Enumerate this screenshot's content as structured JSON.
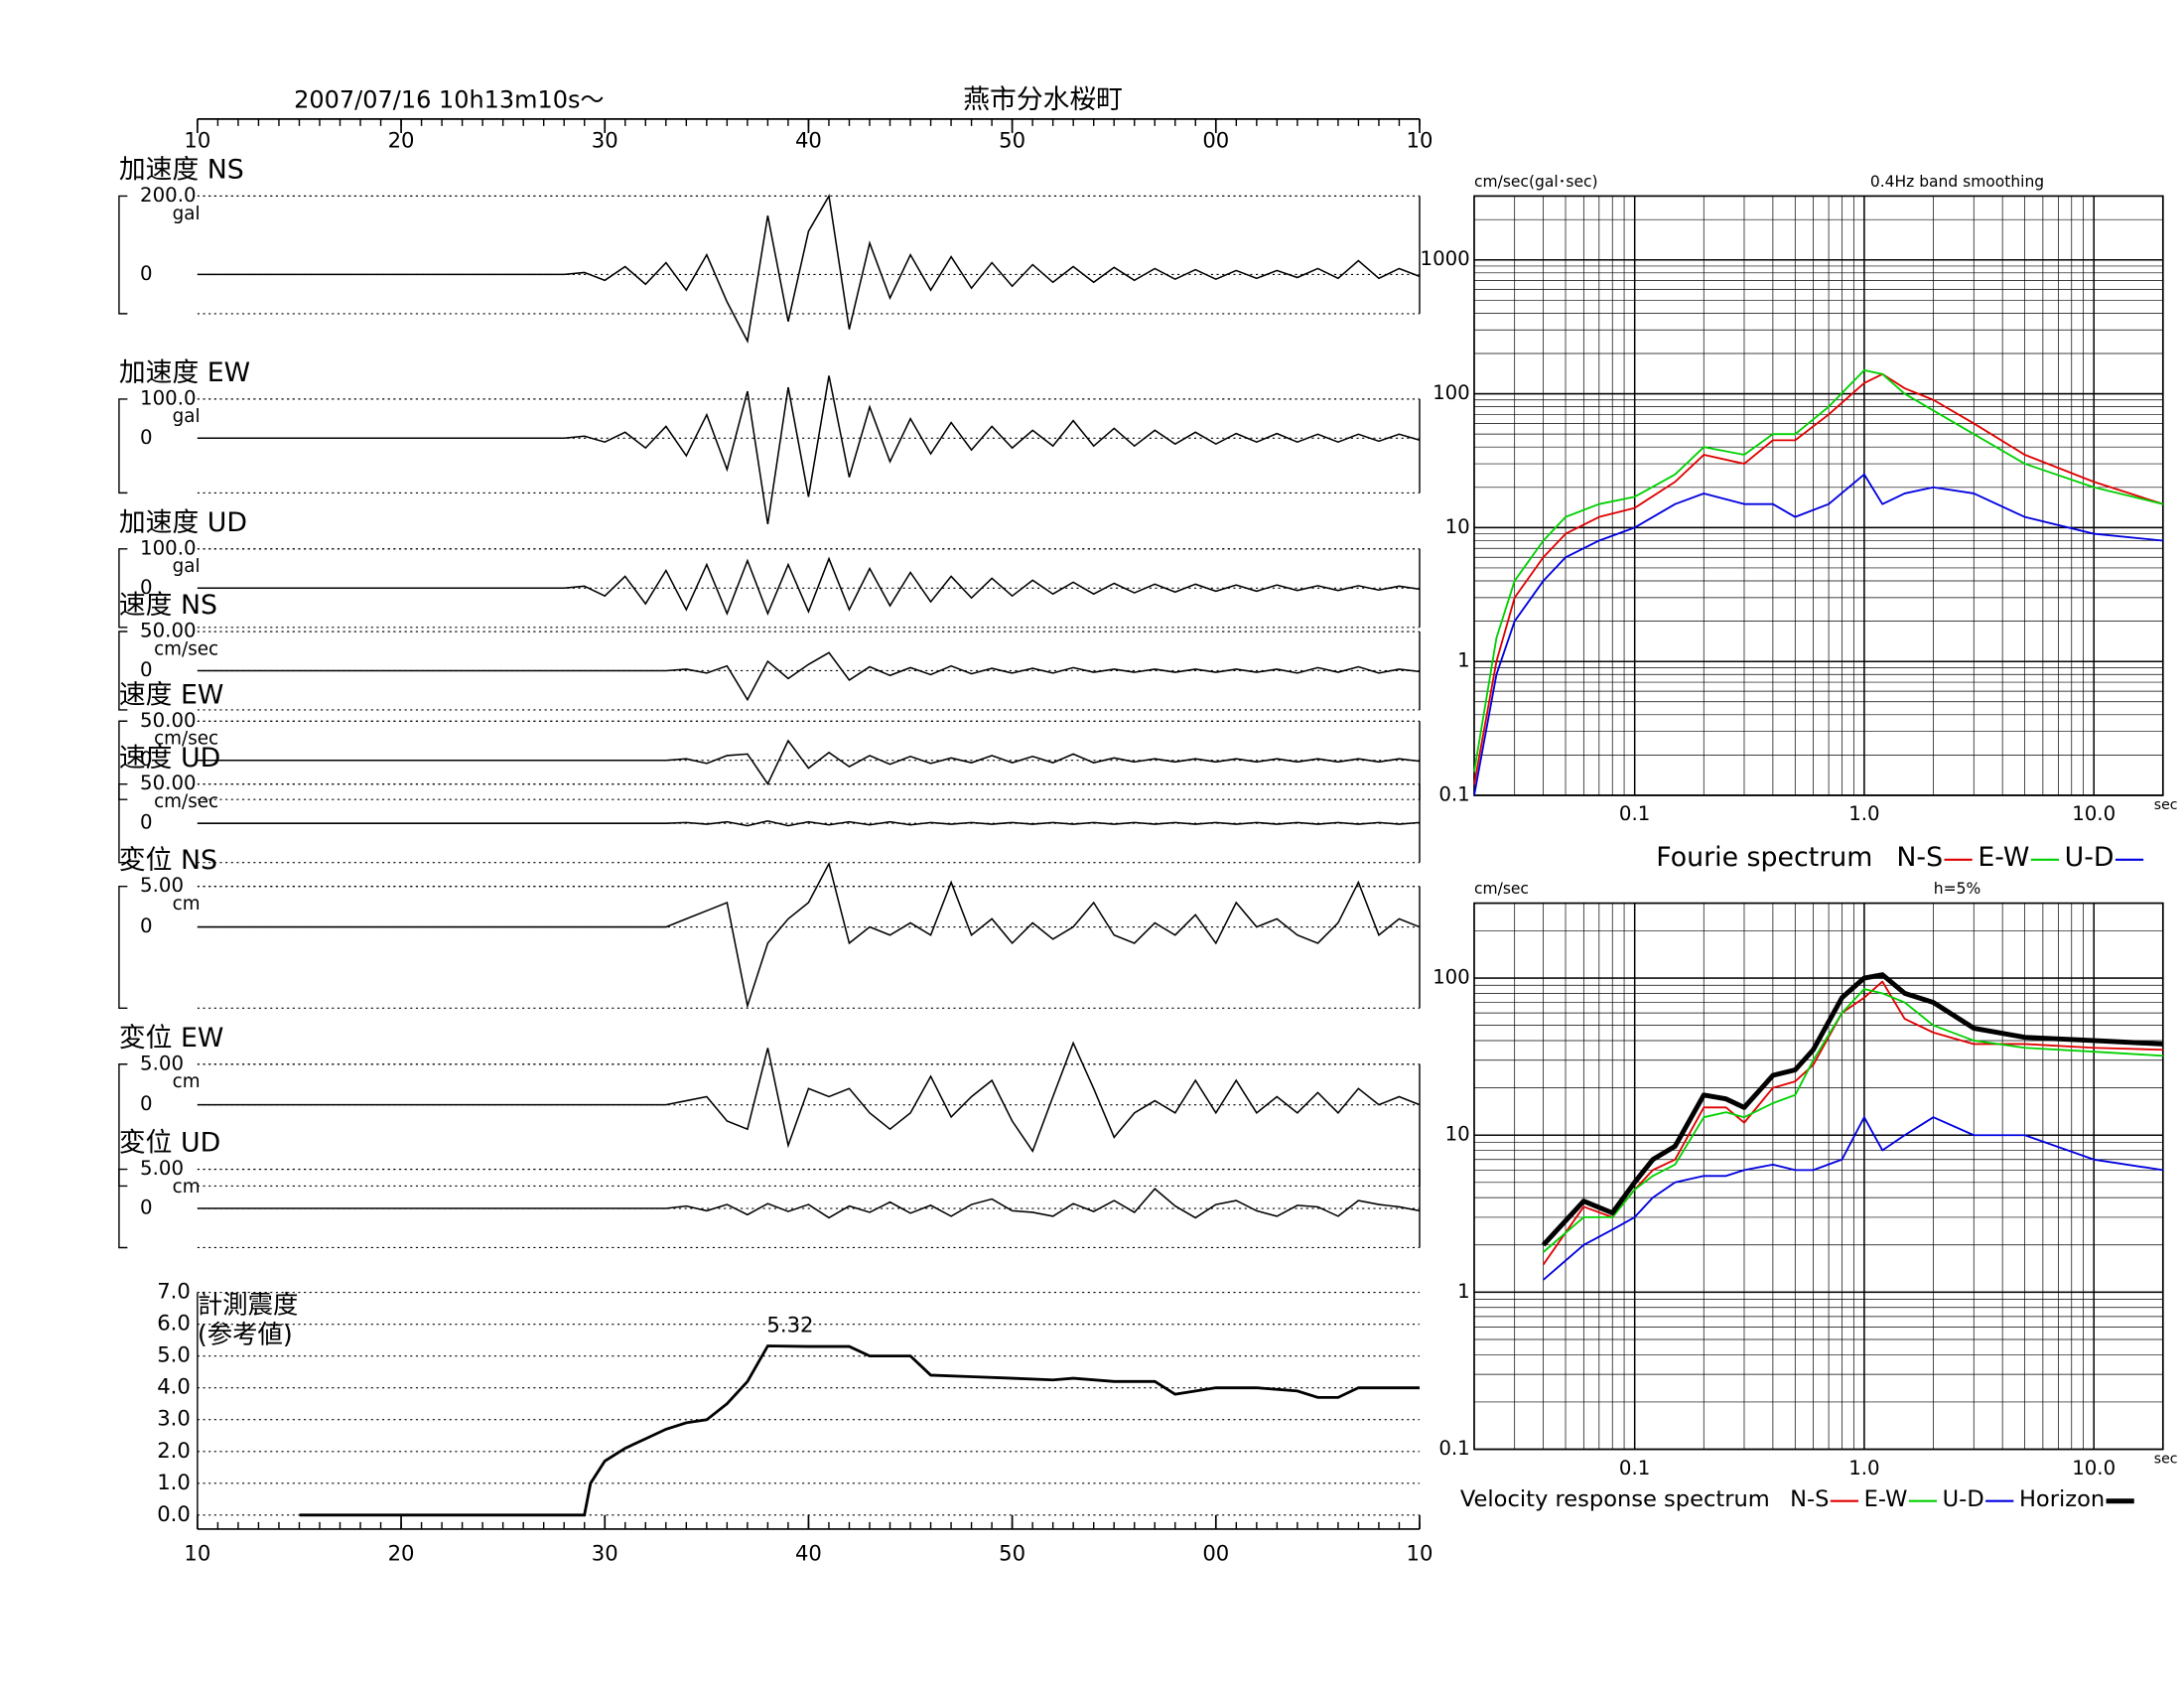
{
  "title": "燕市分水桜町",
  "datetime": "2007/07/16  10h13m10s〜",
  "chart_data": [
    {
      "type": "waveform",
      "xlim": [
        10,
        70
      ],
      "xticks": [
        10,
        20,
        30,
        40,
        50,
        {
          "value": 60,
          "label": "00"
        },
        {
          "value": 70,
          "label": "10"
        }
      ],
      "x": [
        10,
        28,
        29,
        30,
        31,
        32,
        33,
        34,
        35,
        36,
        37,
        38,
        39,
        40,
        41,
        42,
        43,
        44,
        45,
        46,
        47,
        48,
        49,
        50,
        51,
        52,
        53,
        54,
        55,
        56,
        57,
        58,
        59,
        60,
        61,
        62,
        63,
        64,
        65,
        66,
        67,
        68,
        69,
        70
      ],
      "series": [
        {
          "name": "加速度 NS",
          "unit": "gal",
          "color": "#000000",
          "ylim": [
            -100,
            200
          ],
          "yticks": [
            {
              "value": 200,
              "label": "200.0"
            },
            0
          ],
          "values": [
            0,
            0,
            5,
            -15,
            20,
            -25,
            30,
            -40,
            50,
            -70,
            -170,
            150,
            -120,
            110,
            200,
            -140,
            80,
            -60,
            50,
            -40,
            45,
            -35,
            30,
            -30,
            25,
            -20,
            20,
            -20,
            18,
            -15,
            15,
            -12,
            12,
            -12,
            10,
            -10,
            10,
            -8,
            15,
            -10,
            35,
            -10,
            15,
            -5
          ]
        },
        {
          "name": "加速度 EW",
          "unit": "gal",
          "color": "#000000",
          "ylim": [
            -140,
            100
          ],
          "yticks": [
            {
              "value": 100,
              "label": "100.0"
            },
            0
          ],
          "values": [
            0,
            0,
            5,
            -10,
            15,
            -25,
            30,
            -45,
            60,
            -80,
            120,
            -220,
            130,
            -150,
            160,
            -100,
            80,
            -60,
            50,
            -40,
            40,
            -30,
            30,
            -25,
            20,
            -20,
            45,
            -20,
            25,
            -20,
            20,
            -15,
            15,
            -15,
            12,
            -10,
            12,
            -10,
            10,
            -10,
            10,
            -8,
            10,
            -5
          ]
        },
        {
          "name": "加速度 UD",
          "unit": "gal",
          "color": "#000000",
          "ylim": [
            -100,
            100
          ],
          "yticks": [
            {
              "value": 100,
              "label": "100.0"
            },
            0
          ],
          "values": [
            0,
            0,
            5,
            -20,
            30,
            -40,
            45,
            -55,
            60,
            -65,
            70,
            -65,
            60,
            -60,
            75,
            -55,
            50,
            -45,
            40,
            -35,
            30,
            -25,
            25,
            -20,
            20,
            -15,
            15,
            -15,
            12,
            -12,
            10,
            -10,
            10,
            -8,
            8,
            -8,
            8,
            -6,
            6,
            -6,
            6,
            -5,
            5,
            -3
          ]
        },
        {
          "name": "速度 NS",
          "unit": "cm/sec",
          "color": "#000000",
          "ylim": [
            -50,
            50
          ],
          "yticks": [
            {
              "value": 50,
              "label": "50.00"
            },
            0
          ],
          "values": [
            0,
            0,
            0,
            0,
            0,
            0,
            0,
            2,
            -3,
            6,
            -37,
            12,
            -10,
            8,
            23,
            -12,
            5,
            -6,
            4,
            -5,
            6,
            -4,
            3,
            -3,
            3,
            -3,
            4,
            -2,
            2,
            -2,
            2,
            -2,
            2,
            -2,
            2,
            -2,
            2,
            -3,
            4,
            -2,
            5,
            -3,
            2,
            -1
          ]
        },
        {
          "name": "速度 EW",
          "unit": "cm/sec",
          "color": "#000000",
          "ylim": [
            -50,
            50
          ],
          "yticks": [
            {
              "value": 50,
              "label": "50.00"
            },
            0
          ],
          "values": [
            0,
            0,
            0,
            0,
            0,
            0,
            0,
            2,
            -4,
            6,
            8,
            -30,
            25,
            -10,
            10,
            -8,
            6,
            -5,
            5,
            -4,
            3,
            -3,
            6,
            -3,
            5,
            -3,
            8,
            -3,
            3,
            -2,
            2,
            -2,
            2,
            -2,
            2,
            -2,
            2,
            -2,
            2,
            -2,
            2,
            -2,
            2,
            -1
          ]
        },
        {
          "name": "速度 UD",
          "unit": "cm/sec",
          "color": "#000000",
          "ylim": [
            -50,
            50
          ],
          "yticks": [
            {
              "value": 50,
              "label": "50.00"
            },
            0
          ],
          "values": [
            0,
            0,
            0,
            0,
            0,
            0,
            0,
            1,
            -1,
            2,
            -3,
            3,
            -3,
            2,
            -2,
            2,
            -2,
            2,
            -2,
            1,
            -1,
            1,
            -1,
            1,
            -1,
            1,
            -1,
            1,
            -1,
            1,
            -1,
            1,
            -1,
            1,
            -1,
            1,
            -1,
            1,
            -1,
            1,
            -1,
            1,
            -1,
            1
          ]
        },
        {
          "name": "変位 NS",
          "unit": "cm",
          "color": "#000000",
          "ylim": [
            -10,
            5
          ],
          "yticks": [
            {
              "value": 5,
              "label": "5.00"
            },
            0
          ],
          "values": [
            0,
            0,
            0,
            0,
            0,
            0,
            0,
            1,
            2,
            3,
            -9.7,
            -2,
            1,
            3,
            7.8,
            -2,
            0,
            -1,
            0.5,
            -1,
            5.5,
            -1,
            1,
            -2,
            0.5,
            -1.5,
            0,
            3,
            -1,
            -2,
            0.5,
            -1,
            1.5,
            -2,
            3,
            0,
            1,
            -1,
            -2,
            0.5,
            5.5,
            -1,
            1,
            0
          ]
        },
        {
          "name": "変位 EW",
          "unit": "cm",
          "color": "#000000",
          "ylim": [
            -10,
            5
          ],
          "yticks": [
            {
              "value": 5,
              "label": "5.00"
            },
            0
          ],
          "values": [
            0,
            0,
            0,
            0,
            0,
            0,
            0,
            0.5,
            1,
            -2,
            -3,
            7,
            -5,
            2,
            1,
            2,
            -1,
            -3,
            -1,
            3.5,
            -1.5,
            1,
            3,
            -2,
            -5.7,
            1,
            7.6,
            2,
            -4,
            -1,
            0.5,
            -1,
            3,
            -1,
            3,
            -1,
            1,
            -1,
            1.5,
            -1,
            2,
            0,
            1,
            0
          ]
        },
        {
          "name": "変位 UD",
          "unit": "cm",
          "color": "#000000",
          "ylim": [
            -5,
            5
          ],
          "yticks": [
            {
              "value": 5,
              "label": "5.00"
            },
            0
          ],
          "values": [
            0,
            0,
            0,
            0,
            0,
            0,
            0,
            0.3,
            -0.3,
            0.5,
            -0.8,
            0.6,
            -0.4,
            0.5,
            -1.2,
            0.3,
            -0.5,
            0.8,
            -0.6,
            0.4,
            -1,
            0.5,
            1.2,
            -0.3,
            -0.5,
            -1,
            0.6,
            -0.4,
            1,
            -0.5,
            2.5,
            0.3,
            -1.2,
            0.5,
            1,
            -0.3,
            -1,
            0.4,
            0.2,
            -1,
            1,
            0.5,
            0.2,
            -0.3
          ]
        }
      ]
    },
    {
      "type": "line",
      "title": "計測震度",
      "subtitle": "(参考値)",
      "color": "#000000",
      "xlim": [
        10,
        70
      ],
      "xticks": [
        10,
        20,
        30,
        40,
        50,
        {
          "value": 60,
          "label": "00"
        },
        {
          "value": 70,
          "label": "10"
        }
      ],
      "ylim": [
        0,
        7
      ],
      "yticks": [
        {
          "value": 0,
          "label": "0.0"
        },
        {
          "value": 1,
          "label": "1.0"
        },
        {
          "value": 2,
          "label": "2.0"
        },
        {
          "value": 3,
          "label": "3.0"
        },
        {
          "value": 4,
          "label": "4.0"
        },
        {
          "value": 5,
          "label": "5.0"
        },
        {
          "value": 6,
          "label": "6.0"
        },
        {
          "value": 7,
          "label": "7.0"
        }
      ],
      "grid": true,
      "x": [
        15,
        29,
        29.3,
        30,
        31,
        32,
        33,
        34,
        35,
        36,
        37,
        38,
        40,
        42,
        43,
        45,
        46,
        48,
        50,
        52,
        53,
        55,
        57,
        58,
        60,
        62,
        64,
        65,
        66,
        67,
        70
      ],
      "values": [
        0,
        0,
        1.0,
        1.7,
        2.1,
        2.4,
        2.7,
        2.9,
        3.0,
        3.5,
        4.2,
        5.32,
        5.3,
        5.3,
        5.0,
        5.0,
        4.4,
        4.35,
        4.3,
        4.25,
        4.3,
        4.2,
        4.2,
        3.8,
        4.0,
        4.0,
        3.9,
        3.7,
        3.7,
        4.0,
        4.0
      ],
      "value_labels": [
        null,
        null,
        null,
        null,
        null,
        null,
        null,
        null,
        null,
        null,
        null,
        "5.32",
        null,
        null,
        null,
        null,
        null,
        null,
        null,
        null,
        null,
        null,
        null,
        null,
        null,
        null,
        null,
        null,
        null,
        null,
        null
      ]
    },
    {
      "type": "logline",
      "title": "Fourie spectrum",
      "ylabel": "cm/sec(gal･sec)",
      "xlabel": "sec",
      "note": "0.4Hz band smoothing",
      "xscale": "log",
      "yscale": "log",
      "grid": true,
      "minor_grid": true,
      "xlim": [
        0.02,
        20
      ],
      "ylim": [
        0.1,
        3000
      ],
      "xticks": [
        {
          "value": 0.1,
          "label": "0.1"
        },
        {
          "value": 1,
          "label": "1.0"
        },
        {
          "value": 10,
          "label": "10.0"
        }
      ],
      "yticks": [
        0.1,
        1,
        10,
        100,
        1000
      ],
      "x": [
        0.02,
        0.025,
        0.03,
        0.04,
        0.05,
        0.07,
        0.1,
        0.15,
        0.2,
        0.3,
        0.4,
        0.5,
        0.7,
        1.0,
        1.2,
        1.5,
        2,
        3,
        5,
        10,
        20
      ],
      "series": [
        {
          "name": "N-S",
          "color": "#e00000",
          "values": [
            0.12,
            1,
            3,
            6,
            9,
            12,
            14,
            22,
            35,
            30,
            45,
            45,
            70,
            120,
            140,
            110,
            90,
            60,
            35,
            22,
            15
          ]
        },
        {
          "name": "E-W",
          "color": "#00d000",
          "values": [
            0.15,
            1.5,
            4,
            8,
            12,
            15,
            17,
            25,
            40,
            35,
            50,
            50,
            80,
            150,
            140,
            100,
            75,
            50,
            30,
            20,
            15
          ]
        },
        {
          "name": "U-D",
          "color": "#0000e0",
          "values": [
            0.1,
            0.8,
            2,
            4,
            6,
            8,
            10,
            15,
            18,
            15,
            15,
            12,
            15,
            25,
            15,
            18,
            20,
            18,
            12,
            9,
            8
          ]
        }
      ]
    },
    {
      "type": "logline",
      "title": "Velocity response spectrum",
      "ylabel": "cm/sec",
      "xlabel": "sec",
      "note": "h=5%",
      "xscale": "log",
      "yscale": "log",
      "grid": true,
      "minor_grid": true,
      "xlim": [
        0.02,
        20
      ],
      "ylim": [
        0.1,
        300
      ],
      "xticks": [
        {
          "value": 0.1,
          "label": "0.1"
        },
        {
          "value": 1,
          "label": "1.0"
        },
        {
          "value": 10,
          "label": "10.0"
        }
      ],
      "yticks": [
        0.1,
        1,
        10,
        100
      ],
      "x": [
        0.04,
        0.06,
        0.08,
        0.1,
        0.12,
        0.15,
        0.2,
        0.25,
        0.3,
        0.4,
        0.5,
        0.6,
        0.8,
        1.0,
        1.2,
        1.5,
        2,
        3,
        5,
        10,
        20
      ],
      "series": [
        {
          "name": "N-S",
          "color": "#e00000",
          "values": [
            1.5,
            3.5,
            3,
            4.5,
            6,
            7,
            15,
            15,
            12,
            20,
            22,
            28,
            60,
            75,
            95,
            55,
            45,
            38,
            38,
            36,
            35
          ]
        },
        {
          "name": "E-W",
          "color": "#00d000",
          "values": [
            1.8,
            3,
            3,
            4.5,
            5.5,
            6.5,
            13,
            14,
            13,
            16,
            18,
            30,
            60,
            85,
            80,
            70,
            50,
            40,
            36,
            34,
            32
          ]
        },
        {
          "name": "U-D",
          "color": "#0000e0",
          "values": [
            1.2,
            2,
            2.5,
            3,
            4,
            5,
            5.5,
            5.5,
            6,
            6.5,
            6,
            6,
            7,
            13,
            8,
            10,
            13,
            10,
            10,
            7,
            6
          ]
        },
        {
          "name": "Horizon",
          "color": "#000000",
          "line_width": 3.5,
          "values": [
            2,
            3.8,
            3.2,
            5,
            7,
            8.5,
            18,
            17,
            15,
            24,
            26,
            35,
            75,
            100,
            105,
            80,
            70,
            48,
            42,
            40,
            38
          ]
        }
      ]
    }
  ]
}
